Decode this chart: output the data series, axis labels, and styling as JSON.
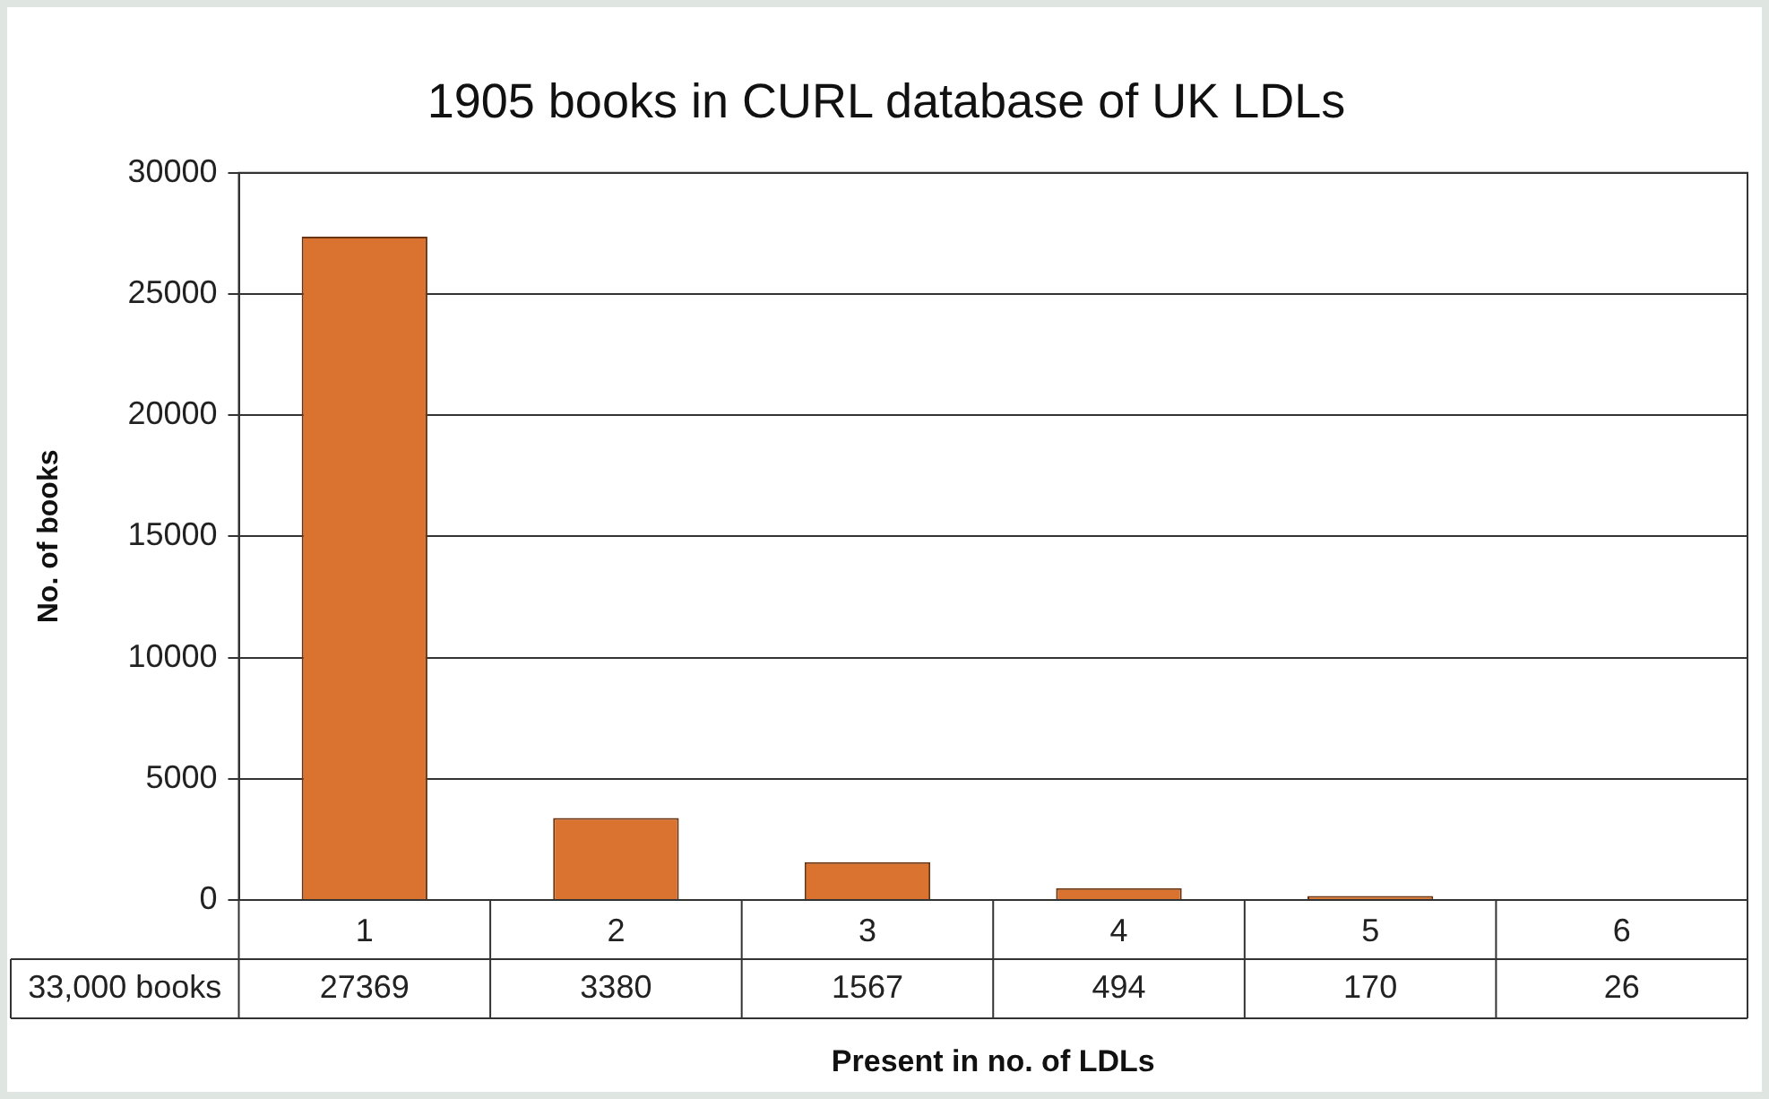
{
  "chart_data": {
    "type": "bar",
    "title": "1905 books in CURL database of UK LDLs",
    "xlabel": "Present in no. of LDLs",
    "ylabel": "No. of books",
    "categories": [
      "1",
      "2",
      "3",
      "4",
      "5",
      "6"
    ],
    "values": [
      27369,
      3380,
      1567,
      494,
      170,
      26
    ],
    "color": "#d9732f",
    "ylim": [
      0,
      30000
    ],
    "yticks": [
      0,
      5000,
      10000,
      15000,
      20000,
      25000,
      30000
    ],
    "grid": "y",
    "data_labels": true,
    "annotations": [
      "33,000 books"
    ]
  }
}
